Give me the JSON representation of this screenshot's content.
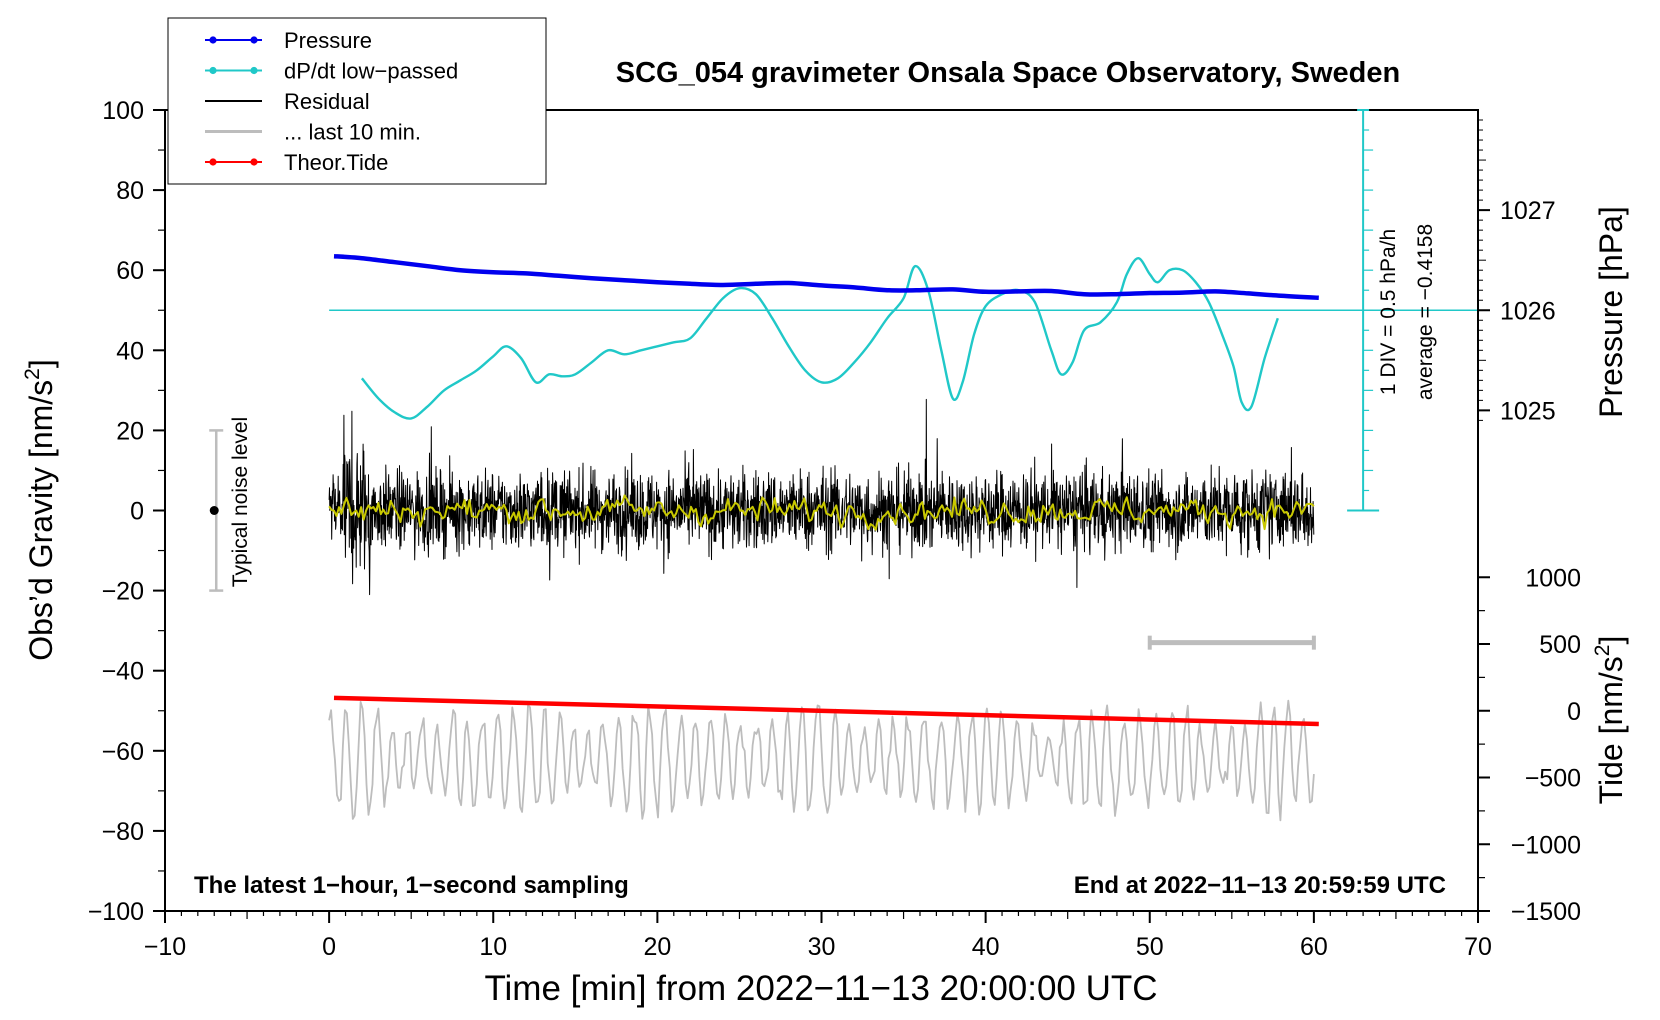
{
  "chart_data": {
    "type": "line",
    "title": "SCG_054 gravimeter Onsala Space Observatory, Sweden",
    "xlabel": "Time [min] from 2022−11−13 20:00:00 UTC",
    "ylabel_left_base": "Obs’d Gravity [nm/s",
    "ylabel_left_sup": "2",
    "ylabel_left_end": "]",
    "ylabel_right_pressure": "Pressure [hPa]",
    "ylabel_right_tide_base": "Tide [nm/s",
    "ylabel_right_tide_sup": "2",
    "ylabel_right_tide_end": "]",
    "xlim": [
      -10,
      70
    ],
    "ylim": [
      -100,
      100
    ],
    "x_ticks": [
      {
        "value": -10,
        "label": "−10"
      },
      {
        "value": 0,
        "label": "0"
      },
      {
        "value": 10,
        "label": "10"
      },
      {
        "value": 20,
        "label": "20"
      },
      {
        "value": 30,
        "label": "30"
      },
      {
        "value": 40,
        "label": "40"
      },
      {
        "value": 50,
        "label": "50"
      },
      {
        "value": 60,
        "label": "60"
      },
      {
        "value": 70,
        "label": "70"
      }
    ],
    "y_ticks": [
      {
        "value": 100,
        "label": "100"
      },
      {
        "value": 80,
        "label": "80"
      },
      {
        "value": 60,
        "label": "60"
      },
      {
        "value": 40,
        "label": "40"
      },
      {
        "value": 20,
        "label": "20"
      },
      {
        "value": 0,
        "label": "0"
      },
      {
        "value": -20,
        "label": "−20"
      },
      {
        "value": -40,
        "label": "−40"
      },
      {
        "value": -60,
        "label": "−60"
      },
      {
        "value": -80,
        "label": "−80"
      },
      {
        "value": -100,
        "label": "−100"
      }
    ],
    "pressure_axis": {
      "mapping": {
        "hpa": [
          1025,
          1027
        ],
        "gravity": [
          25,
          75
        ]
      },
      "ticks": [
        {
          "value": 1027,
          "label": "1027"
        },
        {
          "value": 1026,
          "label": "1026"
        },
        {
          "value": 1025,
          "label": "1025"
        }
      ]
    },
    "tide_axis": {
      "mapping": {
        "tide": [
          -1500,
          1000
        ],
        "gravity": [
          -100,
          -16.67
        ]
      },
      "ticks": [
        {
          "value": 1000,
          "label": "1000"
        },
        {
          "value": 500,
          "label": "500"
        },
        {
          "value": 0,
          "label": "0"
        },
        {
          "value": -500,
          "label": "−500"
        },
        {
          "value": -1000,
          "label": "−1000"
        },
        {
          "value": -1500,
          "label": "−1500"
        }
      ]
    },
    "legend": {
      "placement": "top-left",
      "entries": [
        {
          "label": "Pressure",
          "color": "#0000ee",
          "marker": true
        },
        {
          "label": "dP/dt low−passed",
          "color": "#20c8c8",
          "marker": true
        },
        {
          "label": "Residual",
          "color": "#000000",
          "marker": false
        },
        {
          "label": "... last 10 min.",
          "color": "#bdbdbd",
          "marker": false
        },
        {
          "label": "Theor.Tide",
          "color": "#ff0000",
          "marker": true
        }
      ]
    },
    "annotations": {
      "bottom_left": "The latest 1−hour, 1−second sampling",
      "bottom_right": "End at 2022−11−13 20:59:59 UTC",
      "noise_label": "Typical noise level",
      "dpdt_div": "1 DIV = 0.5 hPa/h",
      "dpdt_average": "average = −0.4158"
    },
    "noise_bar": {
      "x": -7,
      "center": 0,
      "low": -20,
      "high": 20
    },
    "dpdt_scale": {
      "x": 63,
      "baseline": 50,
      "from": 0,
      "to": 100,
      "minor_step": 5
    },
    "last10_bar": {
      "x_start": 50,
      "x_end": 60,
      "y": -33
    },
    "series": [
      {
        "name": "Pressure",
        "color": "#0000ee",
        "x": [
          0.3,
          2,
          4,
          6,
          8,
          10,
          12,
          14,
          16,
          18,
          20,
          22,
          24,
          26,
          28,
          30,
          32,
          34,
          36,
          38,
          40,
          42,
          44,
          46,
          48,
          50,
          52,
          54,
          56,
          58,
          60.3
        ],
        "y": [
          63.5,
          63,
          62,
          61,
          60,
          59.5,
          59.2,
          58.6,
          58,
          57.5,
          57,
          56.6,
          56.3,
          56.6,
          56.8,
          56.2,
          55.7,
          55,
          55,
          55.2,
          54.6,
          54.7,
          54.8,
          54,
          54,
          54.3,
          54.4,
          54.7,
          54.2,
          53.6,
          53.1
        ]
      },
      {
        "name": "dP/dt low−passed",
        "color": "#20c8c8",
        "x": [
          2,
          3,
          4,
          5,
          6,
          7,
          8,
          9,
          10,
          10.8,
          11.7,
          12.6,
          13.4,
          14.2,
          15,
          16,
          17,
          18,
          19,
          20,
          21,
          22,
          23,
          24,
          25,
          26,
          27,
          28,
          29,
          30,
          31,
          32,
          33,
          34,
          35,
          35.7,
          36.5,
          37.3,
          38,
          38.6,
          39.3,
          40,
          41,
          42,
          43,
          44,
          44.6,
          45.3,
          46,
          47,
          48,
          48.6,
          49.3,
          50,
          50.5,
          51.2,
          52,
          52.8,
          53.6,
          54.4,
          55.1,
          55.6,
          56.2,
          57,
          57.8
        ],
        "y": [
          33,
          28,
          24.5,
          23,
          26,
          30,
          32.5,
          35,
          38.5,
          41,
          38,
          32,
          34,
          33.5,
          34,
          37,
          40,
          39,
          40,
          41,
          42,
          43,
          48,
          53,
          55.5,
          54,
          48,
          41,
          35,
          32,
          33,
          37,
          42,
          48,
          53,
          61,
          55,
          40,
          28,
          32,
          44,
          51,
          54,
          55,
          52,
          40,
          34,
          37,
          45,
          47,
          52,
          59,
          63,
          59,
          57,
          60,
          60,
          57,
          52,
          44,
          36,
          27,
          26,
          38,
          48
        ]
      },
      {
        "name": "Residual",
        "color": "#000000",
        "generated": true,
        "x_range": [
          0,
          60
        ],
        "amplitude": 11
      },
      {
        "name": "Residual smoothed",
        "color": "#c8c800",
        "generated": true,
        "x_range": [
          0,
          60
        ],
        "amplitude": 2
      },
      {
        "name": "... last 10 min.",
        "color": "#bdbdbd",
        "generated": true,
        "x_range": [
          0,
          60
        ],
        "center": -62,
        "amplitude": 9
      },
      {
        "name": "Theor.Tide",
        "color": "#ff0000",
        "x": [
          0.3,
          60.3
        ],
        "y": [
          -46.8,
          -53.3
        ]
      }
    ]
  }
}
